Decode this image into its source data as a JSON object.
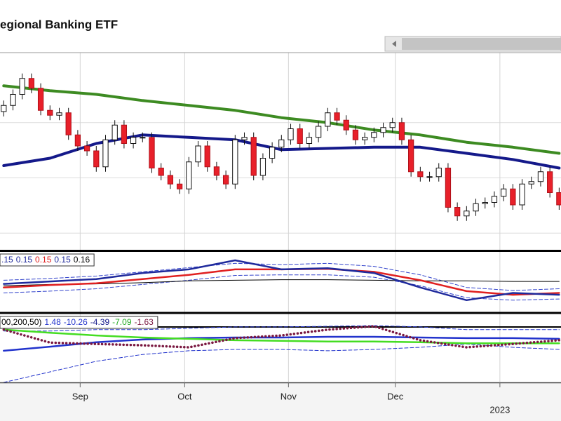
{
  "header": {
    "title": "egional Banking ETF"
  },
  "chart_data": [
    {
      "type": "candlestick",
      "xlim": [
        -0.4,
        60.2
      ],
      "ylim": [
        56,
        72
      ],
      "xticks": [
        {
          "value": 8.26,
          "label": "Sep"
        },
        {
          "value": 19.55,
          "label": "Oct"
        },
        {
          "value": 30.76,
          "label": "Nov"
        },
        {
          "value": 42.3,
          "label": "Dec"
        }
      ],
      "year_ticks": [
        {
          "value": 53.6,
          "label": "2023"
        }
      ],
      "grid_y": [
        66.3,
        61.8,
        57.3
      ],
      "up_color": "#ffffff",
      "down_color": "#e8202a",
      "open": [
        67.2,
        67.7,
        68.6,
        69.9,
        69.1,
        67.3,
        66.9,
        67.1,
        65.3,
        64.4,
        64.0,
        62.7,
        64.9,
        66.1,
        64.6,
        65.1,
        65.1,
        62.6,
        62.0,
        61.3,
        60.9,
        63.1,
        64.4,
        62.7,
        62.0,
        61.3,
        64.9,
        65.1,
        62.0,
        63.4,
        64.3,
        64.9,
        65.8,
        64.6,
        65.1,
        66.0,
        67.1,
        66.5,
        65.7,
        64.9,
        65.1,
        65.5,
        65.9,
        66.3,
        64.9,
        62.3,
        61.9,
        61.9,
        62.6,
        59.4,
        58.7,
        59.1,
        59.7,
        59.8,
        60.3,
        60.9,
        59.6,
        61.3,
        61.5,
        62.3,
        60.6
      ],
      "high": [
        68.1,
        69.0,
        70.3,
        70.3,
        69.5,
        67.7,
        67.5,
        67.5,
        65.7,
        64.8,
        64.4,
        65.3,
        66.5,
        66.5,
        65.5,
        65.5,
        65.5,
        63.0,
        62.4,
        61.7,
        63.5,
        64.8,
        64.8,
        63.1,
        62.4,
        65.3,
        65.5,
        65.5,
        63.8,
        64.7,
        65.3,
        66.2,
        66.2,
        65.5,
        66.4,
        67.5,
        67.5,
        66.9,
        66.1,
        65.5,
        65.9,
        66.3,
        66.7,
        66.7,
        65.3,
        62.7,
        62.3,
        63.0,
        63.0,
        59.8,
        59.5,
        60.1,
        60.2,
        60.7,
        61.3,
        61.3,
        61.7,
        61.9,
        62.7,
        62.7,
        61.0
      ],
      "low": [
        66.8,
        67.3,
        68.2,
        68.7,
        66.9,
        66.5,
        66.5,
        64.9,
        64.0,
        63.6,
        62.3,
        62.3,
        64.5,
        64.2,
        64.2,
        64.7,
        62.2,
        61.6,
        60.9,
        60.5,
        60.5,
        62.7,
        62.3,
        61.6,
        60.9,
        60.9,
        64.5,
        61.6,
        61.6,
        63.0,
        63.9,
        64.5,
        64.2,
        64.2,
        64.7,
        65.6,
        66.1,
        65.3,
        64.5,
        64.5,
        64.7,
        65.1,
        65.5,
        64.5,
        61.9,
        61.5,
        61.5,
        61.5,
        59.0,
        58.3,
        58.3,
        58.7,
        59.3,
        59.4,
        59.9,
        59.2,
        59.2,
        60.9,
        61.1,
        60.2,
        59.2
      ],
      "close": [
        67.7,
        68.6,
        69.9,
        69.1,
        67.3,
        66.9,
        67.1,
        65.3,
        64.4,
        64.0,
        62.7,
        64.9,
        66.1,
        64.6,
        65.1,
        65.1,
        62.6,
        62.0,
        61.3,
        60.9,
        63.1,
        64.4,
        62.7,
        62.0,
        61.3,
        64.9,
        65.1,
        62.0,
        63.4,
        64.3,
        64.9,
        65.8,
        64.6,
        65.1,
        66.0,
        67.1,
        66.5,
        65.7,
        64.9,
        65.1,
        65.5,
        65.9,
        66.3,
        64.9,
        62.3,
        61.9,
        61.9,
        62.6,
        59.4,
        58.7,
        59.1,
        59.7,
        59.8,
        60.3,
        60.9,
        59.6,
        61.3,
        61.5,
        62.3,
        60.6,
        59.6
      ],
      "series": [
        {
          "color": "#3d8b22",
          "width": 4,
          "x": [
            0,
            5,
            10,
            15,
            20,
            25,
            30,
            35,
            40,
            45,
            50,
            55,
            60
          ],
          "values": [
            69.3,
            68.9,
            68.6,
            68.1,
            67.7,
            67.3,
            66.7,
            66.3,
            65.7,
            65.3,
            64.7,
            64.3,
            63.8
          ]
        },
        {
          "color": "#14198a",
          "width": 4,
          "x": [
            0,
            5,
            10,
            15,
            20,
            25,
            30,
            35,
            40,
            45,
            50,
            55,
            60
          ],
          "values": [
            62.8,
            63.4,
            64.6,
            65.3,
            65.1,
            64.9,
            64.1,
            64.2,
            64.3,
            64.3,
            63.8,
            63.3,
            62.6
          ]
        }
      ]
    },
    {
      "type": "line",
      "xlim": [
        -0.4,
        60.2
      ],
      "ylim": [
        0.1,
        0.2
      ],
      "legend": [
        {
          "label": ".15",
          "color": "#1f2a9c"
        },
        {
          "label": "0.15",
          "color": "#1f2a9c"
        },
        {
          "label": "0.15",
          "color": "#e02020"
        },
        {
          "label": "0.15",
          "color": "#1f2a9c"
        },
        {
          "label": "0.16",
          "color": "#000000"
        }
      ],
      "series": [
        {
          "color": "#3344cc",
          "width": 1,
          "dash": true,
          "x": [
            0,
            5,
            10,
            15,
            20,
            25,
            30,
            35,
            40,
            45,
            50,
            55,
            60
          ],
          "values": [
            0.153,
            0.156,
            0.16,
            0.167,
            0.174,
            0.181,
            0.179,
            0.181,
            0.176,
            0.162,
            0.141,
            0.136,
            0.139
          ]
        },
        {
          "color": "#3344cc",
          "width": 1,
          "dash": true,
          "x": [
            0,
            5,
            10,
            15,
            20,
            25,
            30,
            35,
            40,
            45,
            50,
            55,
            60
          ],
          "values": [
            0.132,
            0.135,
            0.139,
            0.146,
            0.153,
            0.161,
            0.162,
            0.162,
            0.158,
            0.144,
            0.124,
            0.12,
            0.122
          ]
        },
        {
          "color": "#000000",
          "width": 1,
          "x": [
            0,
            5,
            10,
            15,
            20,
            25,
            30,
            35,
            40,
            45,
            50,
            55,
            60
          ],
          "values": [
            0.144,
            0.146,
            0.147,
            0.149,
            0.152,
            0.153,
            0.154,
            0.154,
            0.153,
            0.152,
            0.152,
            0.151,
            0.151
          ]
        },
        {
          "color": "#e02020",
          "width": 2.5,
          "x": [
            0,
            5,
            10,
            15,
            20,
            25,
            30,
            35,
            40,
            45,
            50,
            55,
            60
          ],
          "values": [
            0.141,
            0.145,
            0.148,
            0.155,
            0.162,
            0.171,
            0.171,
            0.172,
            0.167,
            0.153,
            0.135,
            0.129,
            0.132
          ]
        },
        {
          "color": "#1f2a9c",
          "width": 2.5,
          "x": [
            0,
            5,
            10,
            15,
            20,
            25,
            30,
            35,
            40,
            45,
            50,
            55,
            60
          ],
          "values": [
            0.147,
            0.151,
            0.155,
            0.165,
            0.171,
            0.186,
            0.171,
            0.173,
            0.165,
            0.141,
            0.12,
            0.132,
            0.129
          ]
        }
      ]
    },
    {
      "type": "line",
      "xlim": [
        -0.4,
        60.2
      ],
      "ylim": [
        -15,
        5
      ],
      "hlines": [
        1.3
      ],
      "legend": [
        {
          "label": "00,200,50)",
          "color": "#000000"
        },
        {
          "label": "1.48",
          "color": "#2233cc"
        },
        {
          "label": "-10.26",
          "color": "#2233cc"
        },
        {
          "label": "-4.39",
          "color": "#14198a"
        },
        {
          "label": "-7.09",
          "color": "#22aa22"
        },
        {
          "label": "-1.63",
          "color": "#7a1840"
        }
      ],
      "series": [
        {
          "color": "#2233cc",
          "width": 1,
          "dash": true,
          "x": [
            0,
            5,
            10,
            15,
            20,
            25,
            30,
            35,
            40,
            45,
            50,
            55,
            60
          ],
          "values": [
            0.1,
            0.1,
            0.5,
            0.5,
            0.9,
            1.3,
            1.3,
            1.5,
            1.7,
            1.3,
            0.5,
            0.5,
            0.5
          ]
        },
        {
          "color": "#2233cc",
          "width": 1,
          "dash": true,
          "x": [
            0,
            5,
            10,
            15,
            20,
            25,
            30,
            35,
            40,
            45,
            50,
            55,
            60
          ],
          "values": [
            -15,
            -11.9,
            -8.8,
            -6.8,
            -5.7,
            -5.3,
            -5.3,
            -5.7,
            -5.3,
            -4.7,
            -3.7,
            -4.7,
            -5.3
          ]
        },
        {
          "color": "#2233cc",
          "width": 2.5,
          "x": [
            0,
            5,
            10,
            15,
            20,
            25,
            30,
            35,
            40,
            45,
            50,
            55,
            60
          ],
          "values": [
            -5.7,
            -4.5,
            -3.2,
            -2.4,
            -2.0,
            -1.8,
            -1.8,
            -1.6,
            -1.6,
            -1.8,
            -2.0,
            -2.0,
            -2.2
          ]
        },
        {
          "color": "#44dd22",
          "width": 2.5,
          "x": [
            0,
            5,
            10,
            15,
            20,
            25,
            30,
            35,
            40,
            45,
            50,
            55,
            60
          ],
          "values": [
            0.5,
            -0.4,
            -1.2,
            -1.8,
            -2.2,
            -2.6,
            -2.8,
            -3.0,
            -3.0,
            -3.2,
            -3.5,
            -3.5,
            -3.5
          ]
        },
        {
          "color": "#7a1840",
          "width": 3.5,
          "dotted": true,
          "x": [
            0,
            5,
            10,
            15,
            20,
            25,
            30,
            35,
            40,
            45,
            50,
            55,
            60
          ],
          "values": [
            0.5,
            -3.3,
            -3.7,
            -4.1,
            -4.7,
            -2.0,
            -1.2,
            0.5,
            1.5,
            -2.6,
            -4.7,
            -3.7,
            -2.6
          ]
        }
      ]
    }
  ]
}
